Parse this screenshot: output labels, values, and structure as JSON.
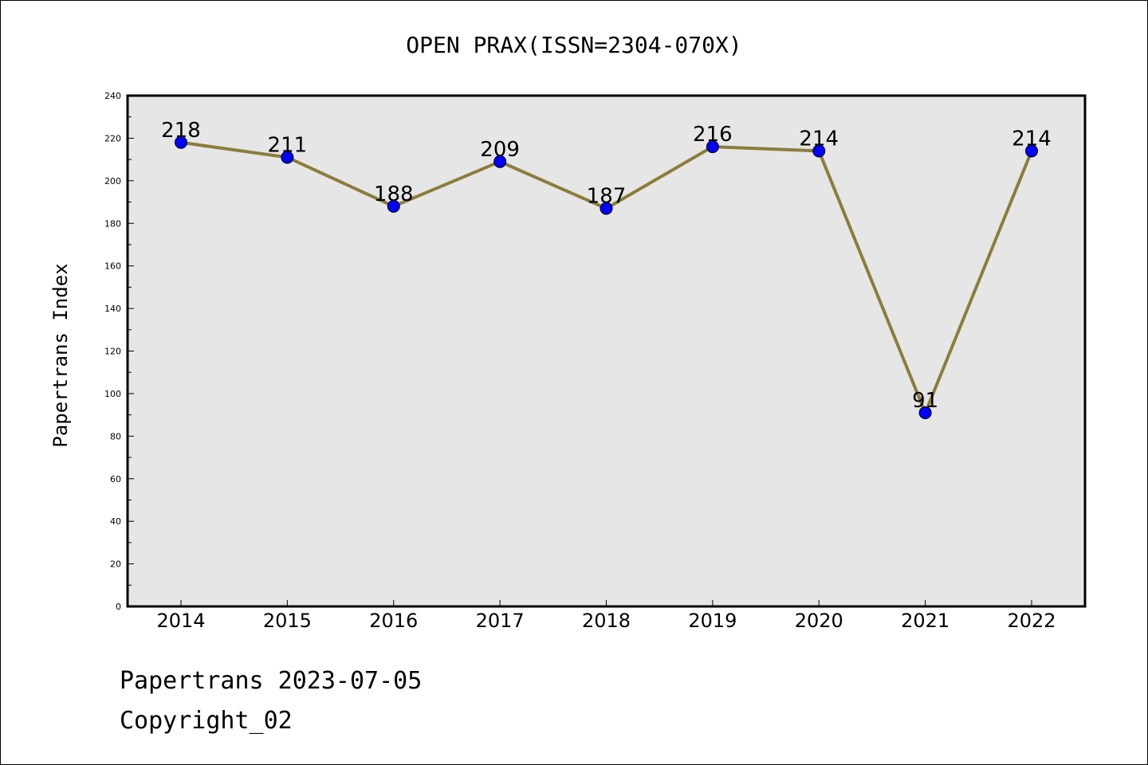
{
  "chart_data": {
    "type": "line",
    "title": "OPEN PRAX(ISSN=2304-070X)",
    "xlabel": "",
    "ylabel": "Papertrans Index",
    "categories": [
      "2014",
      "2015",
      "2016",
      "2017",
      "2018",
      "2019",
      "2020",
      "2021",
      "2022"
    ],
    "values": [
      218,
      211,
      188,
      209,
      187,
      216,
      214,
      91,
      214
    ],
    "ylim": [
      0,
      240
    ],
    "yticks": [
      0,
      20,
      40,
      60,
      80,
      100,
      120,
      140,
      160,
      180,
      200,
      220,
      240
    ],
    "grid": false,
    "line_color": "#8b7d3a",
    "marker_color": "#0000ff",
    "plot_background": "#e6e6e6"
  },
  "footer": {
    "line1": "Papertrans 2023-07-05",
    "line2": "Copyright_02"
  }
}
